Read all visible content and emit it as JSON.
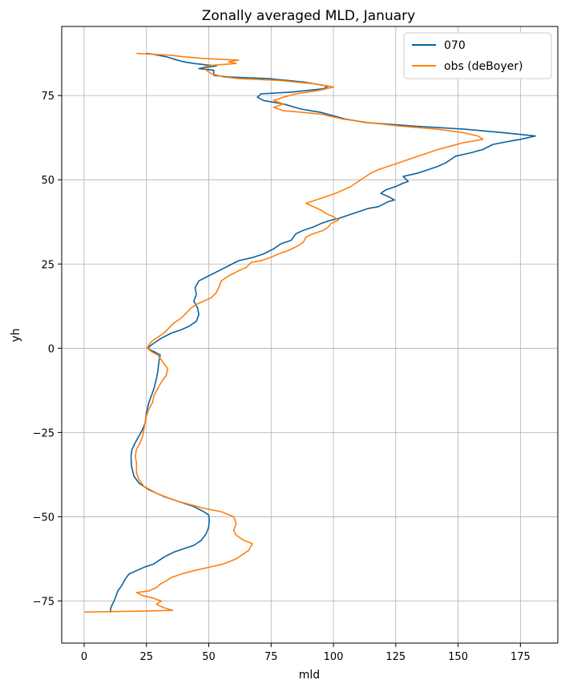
{
  "chart_data": {
    "type": "line",
    "title": "Zonally averaged MLD, January",
    "xlabel": "mld",
    "ylabel": "yh",
    "xlim": [
      -9,
      190
    ],
    "ylim": [
      -87.5,
      95.5
    ],
    "xticks": [
      0,
      25,
      50,
      75,
      100,
      125,
      150,
      175
    ],
    "yticks": [
      -75,
      -50,
      -25,
      0,
      25,
      50,
      75
    ],
    "xtick_labels": [
      "0",
      "25",
      "50",
      "75",
      "100",
      "125",
      "150",
      "175"
    ],
    "ytick_labels": [
      "−75",
      "−50",
      "−25",
      "0",
      "25",
      "50",
      "75"
    ],
    "grid": true,
    "legend_position": "top-right",
    "series": [
      {
        "name": "070",
        "color": "#0a62a0",
        "points": [
          [
            10.8,
            -78.4
          ],
          [
            10.5,
            -77.5
          ],
          [
            11,
            -76.5
          ],
          [
            12,
            -75
          ],
          [
            12.8,
            -73.5
          ],
          [
            13.5,
            -72
          ],
          [
            15,
            -70.5
          ],
          [
            16.5,
            -68.5
          ],
          [
            18,
            -67
          ],
          [
            21,
            -66
          ],
          [
            24,
            -65
          ],
          [
            28,
            -64
          ],
          [
            32,
            -62
          ],
          [
            36,
            -60.5
          ],
          [
            40,
            -59.5
          ],
          [
            44,
            -58.5
          ],
          [
            47,
            -57
          ],
          [
            49,
            -55
          ],
          [
            50,
            -53
          ],
          [
            50.2,
            -51
          ],
          [
            50,
            -49.5
          ],
          [
            48,
            -48.5
          ],
          [
            44,
            -47
          ],
          [
            38,
            -45.5
          ],
          [
            32,
            -44
          ],
          [
            26,
            -42
          ],
          [
            22,
            -40
          ],
          [
            20,
            -38
          ],
          [
            19,
            -35
          ],
          [
            18.8,
            -32
          ],
          [
            19.2,
            -30
          ],
          [
            20.5,
            -28
          ],
          [
            22,
            -26
          ],
          [
            23.5,
            -24
          ],
          [
            24.5,
            -22
          ],
          [
            25,
            -19
          ],
          [
            26,
            -16
          ],
          [
            27,
            -14
          ],
          [
            28,
            -12
          ],
          [
            29,
            -9
          ],
          [
            29.5,
            -7
          ],
          [
            30,
            -4
          ],
          [
            30.5,
            -2
          ],
          [
            28,
            -1
          ],
          [
            26,
            -0.3
          ],
          [
            25.5,
            0
          ],
          [
            27,
            1
          ],
          [
            29,
            2
          ],
          [
            31,
            3
          ],
          [
            35,
            4.5
          ],
          [
            39,
            5.5
          ],
          [
            42,
            6.5
          ],
          [
            45,
            8
          ],
          [
            46,
            10
          ],
          [
            45.5,
            12
          ],
          [
            44,
            14
          ],
          [
            45,
            16
          ],
          [
            44.5,
            18
          ],
          [
            46,
            20
          ],
          [
            50,
            21.5
          ],
          [
            54,
            23
          ],
          [
            58,
            24.5
          ],
          [
            62,
            26
          ],
          [
            68,
            27
          ],
          [
            72,
            28
          ],
          [
            76,
            29.5
          ],
          [
            79,
            31
          ],
          [
            83,
            32
          ],
          [
            85,
            34
          ],
          [
            88,
            35
          ],
          [
            92,
            36
          ],
          [
            95,
            37
          ],
          [
            99,
            38
          ],
          [
            102,
            38.5
          ],
          [
            106,
            39.5
          ],
          [
            110,
            40.5
          ],
          [
            114,
            41.5
          ],
          [
            118,
            42
          ],
          [
            122,
            43.5
          ],
          [
            124.5,
            44
          ],
          [
            122,
            45
          ],
          [
            119,
            46
          ],
          [
            121,
            47
          ],
          [
            125,
            48
          ],
          [
            128,
            49
          ],
          [
            130,
            49.5
          ],
          [
            128,
            51
          ],
          [
            134,
            52
          ],
          [
            138,
            53
          ],
          [
            142,
            54
          ],
          [
            145,
            55
          ],
          [
            147,
            56
          ],
          [
            149,
            57
          ],
          [
            155,
            58
          ],
          [
            160,
            59
          ],
          [
            164,
            60.5
          ],
          [
            171,
            61.5
          ],
          [
            175,
            62
          ],
          [
            181,
            63
          ],
          [
            168,
            64
          ],
          [
            153,
            65
          ],
          [
            131,
            66
          ],
          [
            113,
            67
          ],
          [
            105,
            68
          ],
          [
            95,
            70
          ],
          [
            87,
            71
          ],
          [
            80,
            72.5
          ],
          [
            72,
            73.5
          ],
          [
            69.5,
            74.5
          ],
          [
            71,
            75.5
          ],
          [
            83,
            76
          ],
          [
            96,
            77
          ],
          [
            98,
            77.8
          ],
          [
            88,
            79
          ],
          [
            74,
            80
          ],
          [
            58,
            80.5
          ],
          [
            52,
            81
          ],
          [
            52,
            82.5
          ],
          [
            46,
            83
          ],
          [
            53,
            83.8
          ],
          [
            44,
            84.5
          ],
          [
            40,
            85
          ],
          [
            36,
            85.8
          ],
          [
            33,
            86.5
          ],
          [
            28,
            87.2
          ],
          [
            25,
            87.5
          ]
        ]
      },
      {
        "name": "obs (deBoyer)",
        "color": "#ff7f0e",
        "points": [
          [
            0,
            -78.3
          ],
          [
            24,
            -78
          ],
          [
            35.5,
            -77.8
          ],
          [
            32,
            -77
          ],
          [
            29,
            -76
          ],
          [
            31,
            -75
          ],
          [
            27,
            -74
          ],
          [
            24,
            -73.5
          ],
          [
            21,
            -72.5
          ],
          [
            26,
            -72
          ],
          [
            29,
            -71
          ],
          [
            30.5,
            -70
          ],
          [
            33,
            -69
          ],
          [
            35,
            -68
          ],
          [
            39,
            -67
          ],
          [
            44,
            -66
          ],
          [
            50,
            -65
          ],
          [
            56,
            -64
          ],
          [
            61,
            -62.5
          ],
          [
            64,
            -61
          ],
          [
            66,
            -60
          ],
          [
            67.5,
            -58
          ],
          [
            64,
            -57
          ],
          [
            61,
            -55.5
          ],
          [
            60,
            -54
          ],
          [
            61,
            -52
          ],
          [
            60,
            -50
          ],
          [
            55,
            -48.5
          ],
          [
            48,
            -47.5
          ],
          [
            43,
            -46.5
          ],
          [
            38,
            -45.5
          ],
          [
            34,
            -44.5
          ],
          [
            29,
            -43
          ],
          [
            24,
            -41
          ],
          [
            22,
            -39
          ],
          [
            21,
            -37
          ],
          [
            21,
            -34
          ],
          [
            20.5,
            -32
          ],
          [
            21,
            -30
          ],
          [
            22.5,
            -28
          ],
          [
            23.5,
            -26
          ],
          [
            24,
            -24
          ],
          [
            24.5,
            -22
          ],
          [
            25,
            -20
          ],
          [
            26,
            -18
          ],
          [
            27.5,
            -16
          ],
          [
            28,
            -14
          ],
          [
            29.5,
            -12
          ],
          [
            31,
            -10
          ],
          [
            33,
            -8
          ],
          [
            33.5,
            -6
          ],
          [
            32,
            -4.5
          ],
          [
            30.5,
            -3
          ],
          [
            29.5,
            -2
          ],
          [
            27,
            -1
          ],
          [
            25.3,
            0
          ],
          [
            26,
            1
          ],
          [
            27,
            2
          ],
          [
            29,
            3
          ],
          [
            32,
            4.5
          ],
          [
            34,
            6
          ],
          [
            36,
            7.5
          ],
          [
            39,
            9
          ],
          [
            41,
            10.5
          ],
          [
            43,
            12
          ],
          [
            45,
            13
          ],
          [
            48,
            14
          ],
          [
            51,
            15
          ],
          [
            53,
            16.5
          ],
          [
            54,
            18
          ],
          [
            55,
            20
          ],
          [
            58,
            21.5
          ],
          [
            62,
            23
          ],
          [
            65,
            24
          ],
          [
            67,
            25.5
          ],
          [
            71,
            26
          ],
          [
            75,
            27
          ],
          [
            78,
            28
          ],
          [
            82,
            29
          ],
          [
            86,
            30.5
          ],
          [
            88,
            31.5
          ],
          [
            89,
            33
          ],
          [
            92,
            34
          ],
          [
            96,
            35
          ],
          [
            98,
            36
          ],
          [
            99,
            37
          ],
          [
            102,
            38
          ],
          [
            100,
            39
          ],
          [
            97,
            40
          ],
          [
            95,
            41
          ],
          [
            92,
            42
          ],
          [
            89,
            43
          ],
          [
            93,
            44
          ],
          [
            97,
            45
          ],
          [
            101,
            46
          ],
          [
            104,
            47
          ],
          [
            107,
            48
          ],
          [
            109,
            49
          ],
          [
            111,
            50
          ],
          [
            113,
            51
          ],
          [
            115,
            52
          ],
          [
            118,
            53
          ],
          [
            122,
            54
          ],
          [
            126,
            55
          ],
          [
            130,
            56
          ],
          [
            134,
            57
          ],
          [
            138,
            58
          ],
          [
            142,
            59
          ],
          [
            147,
            60
          ],
          [
            152,
            61
          ],
          [
            160,
            62
          ],
          [
            158,
            63
          ],
          [
            152,
            64
          ],
          [
            142,
            65
          ],
          [
            126,
            66
          ],
          [
            114,
            67
          ],
          [
            104,
            68
          ],
          [
            95,
            69.5
          ],
          [
            88,
            70
          ],
          [
            80,
            70.5
          ],
          [
            76,
            71.5
          ],
          [
            80,
            72.5
          ],
          [
            76,
            73.5
          ],
          [
            80,
            74.5
          ],
          [
            85,
            75.5
          ],
          [
            94,
            76.5
          ],
          [
            100,
            77.5
          ],
          [
            92,
            78.5
          ],
          [
            78,
            79.5
          ],
          [
            62,
            80
          ],
          [
            56,
            80.5
          ],
          [
            51,
            81.5
          ],
          [
            49,
            82.5
          ],
          [
            48,
            83.5
          ],
          [
            52,
            84
          ],
          [
            61,
            84.5
          ],
          [
            58,
            85
          ],
          [
            62,
            85.5
          ],
          [
            48,
            86
          ],
          [
            40,
            86.5
          ],
          [
            34,
            87
          ],
          [
            26,
            87.3
          ],
          [
            21,
            87.5
          ]
        ]
      }
    ]
  }
}
